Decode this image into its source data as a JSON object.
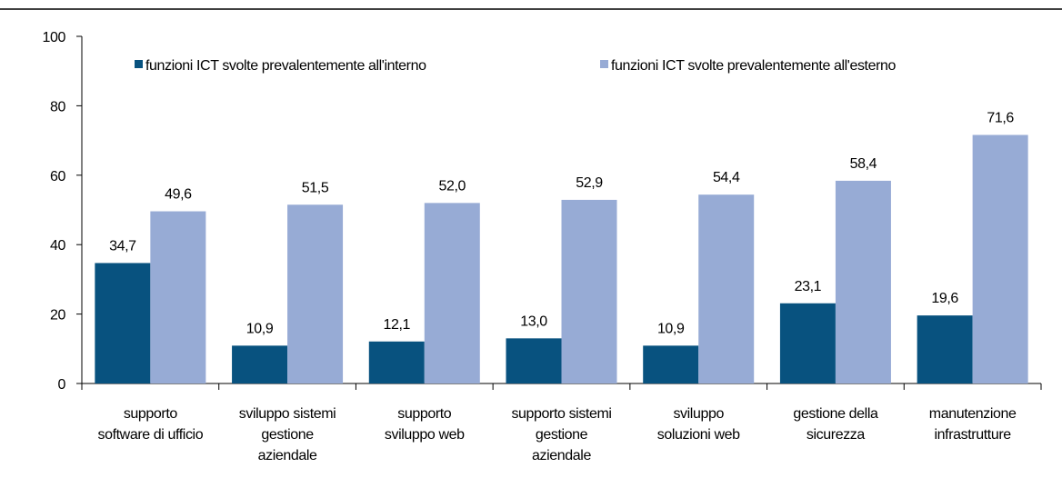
{
  "chart_data": {
    "type": "bar",
    "categories": [
      [
        "supporto",
        "software di ufficio"
      ],
      [
        "sviluppo  sistemi",
        "gestione",
        "aziendale"
      ],
      [
        "supporto",
        "sviluppo web"
      ],
      [
        "supporto sistemi",
        "gestione",
        "aziendale"
      ],
      [
        "sviluppo",
        "soluzioni web"
      ],
      [
        "gestione della",
        "sicurezza"
      ],
      [
        "manutenzione",
        "infrastrutture"
      ]
    ],
    "series": [
      {
        "name": "funzioni ICT svolte prevalentemente all'interno",
        "color": "#08527f",
        "values": [
          34.7,
          10.9,
          12.1,
          13.0,
          10.9,
          23.1,
          19.6
        ],
        "value_labels": [
          "34,7",
          "10,9",
          "12,1",
          "13,0",
          "10,9",
          "23,1",
          "19,6"
        ]
      },
      {
        "name": "funzioni ICT svolte prevalentemente all'esterno",
        "color": "#97abd5",
        "values": [
          49.6,
          51.5,
          52.0,
          52.9,
          54.4,
          58.4,
          71.6
        ],
        "value_labels": [
          "49,6",
          "51,5",
          "52,0",
          "52,9",
          "54,4",
          "58,4",
          "71,6"
        ]
      }
    ],
    "ylim": [
      0,
      100
    ],
    "yticks": [
      0,
      20,
      40,
      60,
      80,
      100
    ],
    "legend": "top"
  }
}
